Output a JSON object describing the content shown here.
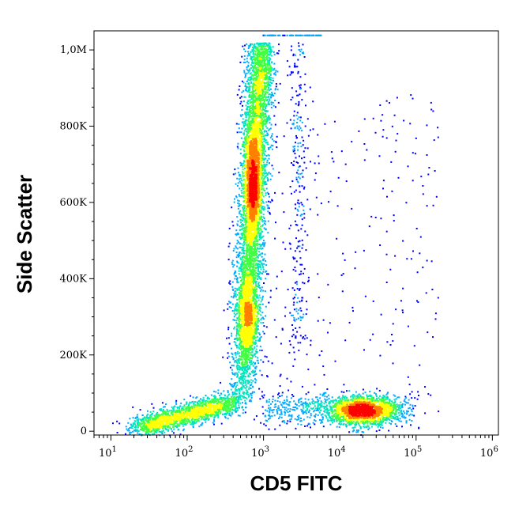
{
  "chart_data": {
    "type": "scatter",
    "subtype": "flow-cytometry-density-dot-plot",
    "xlabel": "CD5 FITC",
    "ylabel": "Side Scatter",
    "x_scale": "log",
    "xlim": [
      6,
      1200000
    ],
    "ylim": [
      -10000,
      1050000
    ],
    "x_ticks": [
      {
        "value": 10,
        "base": "10",
        "exp": "1"
      },
      {
        "value": 100,
        "base": "10",
        "exp": "2"
      },
      {
        "value": 1000,
        "base": "10",
        "exp": "3"
      },
      {
        "value": 10000,
        "base": "10",
        "exp": "4"
      },
      {
        "value": 100000,
        "base": "10",
        "exp": "5"
      },
      {
        "value": 1000000,
        "base": "10",
        "exp": "6"
      }
    ],
    "y_ticks": [
      {
        "value": 0,
        "label": "0"
      },
      {
        "value": 200000,
        "label": "200K"
      },
      {
        "value": 400000,
        "label": "400K"
      },
      {
        "value": 600000,
        "label": "600K"
      },
      {
        "value": 800000,
        "label": "800K"
      },
      {
        "value": 1000000,
        "label": "1,0M"
      }
    ],
    "populations": [
      {
        "name": "low-SSC negative cluster",
        "x_center": 150,
        "y_center": 40000,
        "count": 1600
      },
      {
        "name": "high-SSC negative (granulocyte) band",
        "x_center": 700,
        "y_center": 650000,
        "count": 4200
      },
      {
        "name": "mid-SSC negative band",
        "x_center": 650,
        "y_center": 300000,
        "count": 1500
      },
      {
        "name": "CD5 positive cluster",
        "x_center": 20000,
        "y_center": 50000,
        "count": 1700
      }
    ],
    "grid": false,
    "legend": "none",
    "color_scale": [
      "#0000ff",
      "#00aaff",
      "#00e5c0",
      "#40ff40",
      "#ffff00",
      "#ff8000",
      "#ff0000"
    ]
  }
}
